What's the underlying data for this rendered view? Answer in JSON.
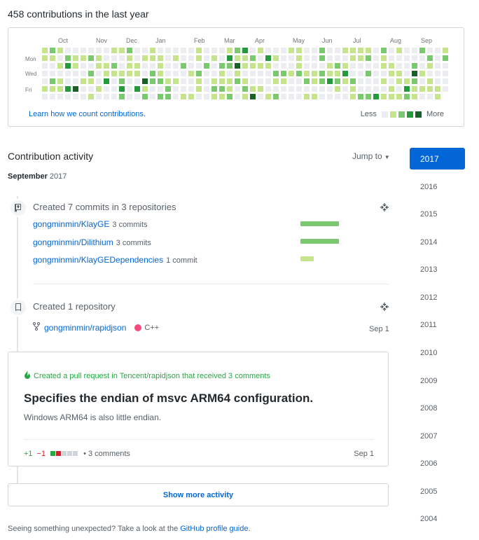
{
  "header": {
    "contrib_title": "458 contributions in the last year"
  },
  "graph": {
    "months": [
      "Oct",
      "Nov",
      "Dec",
      "Jan",
      "Feb",
      "Mar",
      "Apr",
      "May",
      "Jun",
      "Jul",
      "Aug",
      "Sep"
    ],
    "day_labels": [
      "Mon",
      "Wed",
      "Fri"
    ],
    "learn_link": "Learn how we count contributions.",
    "legend_less": "Less",
    "legend_more": "More",
    "colors": [
      "#ebedf0",
      "#c6e48b",
      "#7bc96f",
      "#239a3b",
      "#196127"
    ]
  },
  "activity": {
    "heading": "Contribution activity",
    "jump_to": "Jump to",
    "month": "September",
    "month_year": "2017",
    "commits_event": {
      "title": "Created 7 commits in 3 repositories",
      "repos": [
        {
          "name": "gongminmin/KlayGE",
          "count": "3 commits",
          "level": "dark"
        },
        {
          "name": "gongminmin/Dilithium",
          "count": "3 commits",
          "level": "dark"
        },
        {
          "name": "gongminmin/KlayGEDependencies",
          "count": "1 commit",
          "level": "light"
        }
      ]
    },
    "repo_event": {
      "title": "Created 1 repository",
      "repo_name": "gongminmin/rapidjson",
      "language": "C++",
      "language_color": "#f34b7d",
      "date": "Sep 1"
    },
    "pr_card": {
      "note": "Created a pull request in Tencent/rapidjson that received 3 comments",
      "title": "Specifies the endian of msvc ARM64 configuration.",
      "body": "Windows ARM64 is also little endian.",
      "additions": "+1",
      "deletions": "−1",
      "comments": "• 3 comments",
      "date": "Sep 1"
    },
    "show_more": "Show more activity",
    "footnote_text": "Seeing something unexpected? Take a look at the ",
    "footnote_link": "GitHub profile guide",
    "footnote_end": "."
  },
  "years": [
    "2017",
    "2016",
    "2015",
    "2014",
    "2013",
    "2012",
    "2011",
    "2010",
    "2009",
    "2008",
    "2007",
    "2006",
    "2005",
    "2004"
  ]
}
